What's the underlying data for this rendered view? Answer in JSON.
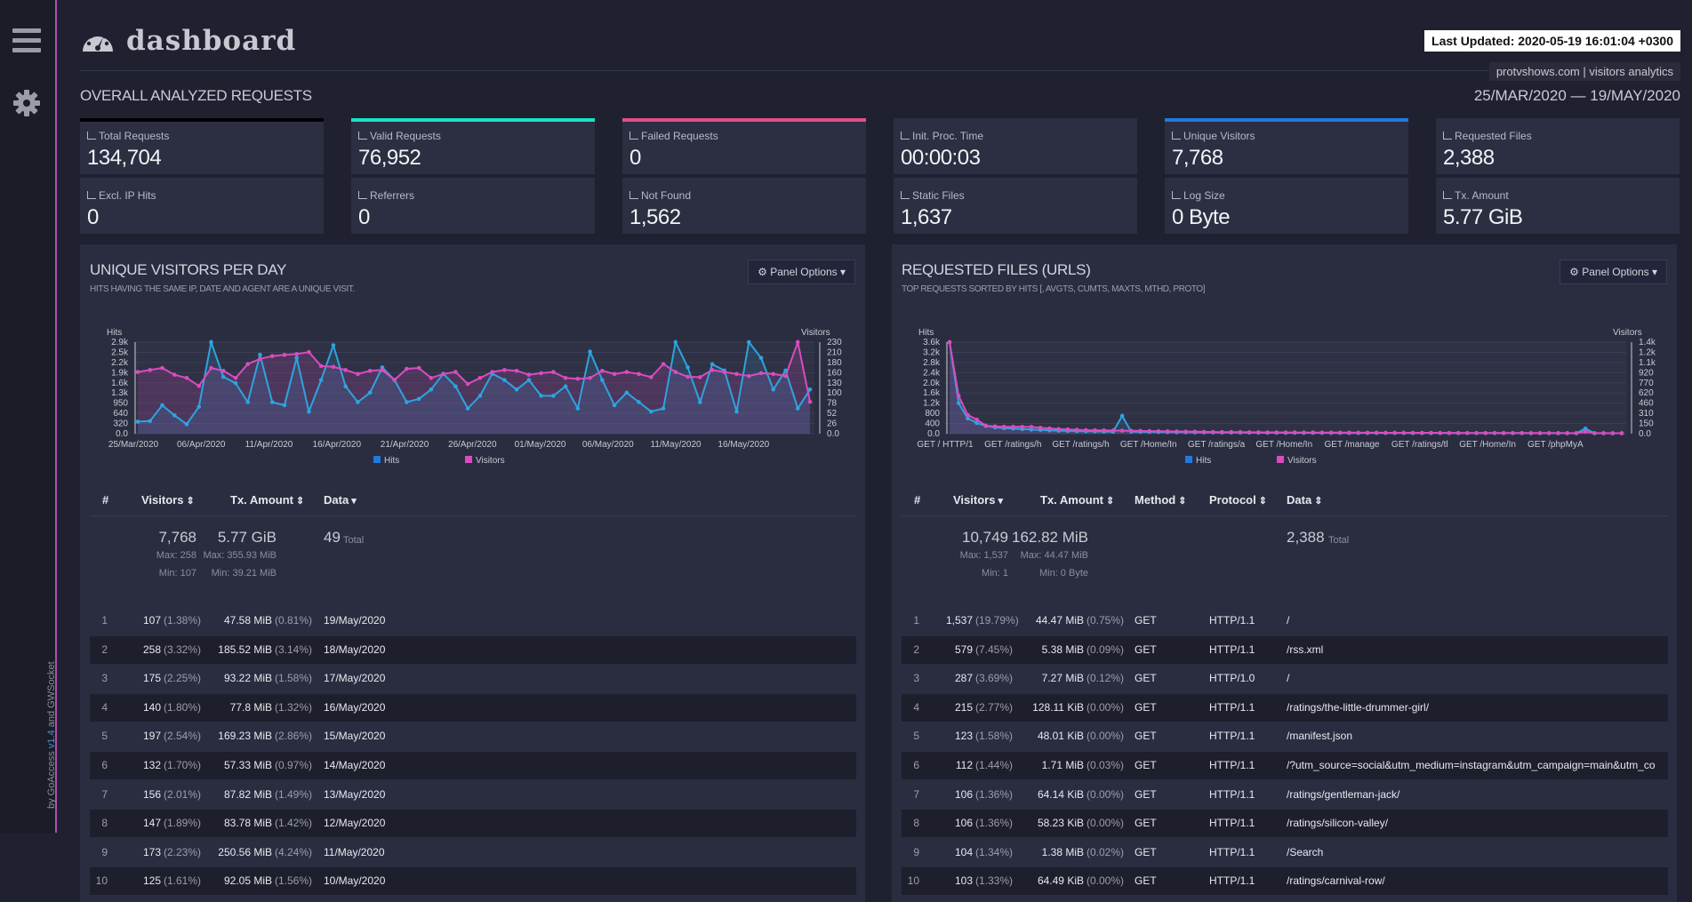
{
  "sidebar": {
    "credit_prefix": "by GoAccess",
    "credit_version": "v1.4",
    "credit_and": "and",
    "credit_suffix": "GWSocket"
  },
  "header": {
    "title": "dashboard",
    "last_updated": "Last Updated: 2020-05-19 16:01:04 +0300",
    "site": "protvshows.com | visitors analytics",
    "section": "OVERALL ANALYZED REQUESTS",
    "daterange": "25/MAR/2020 — 19/MAY/2020"
  },
  "colors": {
    "valid": "#19e3c4",
    "failed": "#e64c8a",
    "unique": "#1f7ae0",
    "hits": "#2da4e0",
    "visitors": "#d94cc0"
  },
  "cards": [
    {
      "label": "Total Requests",
      "value": "134,704"
    },
    {
      "label": "Valid Requests",
      "value": "76,952"
    },
    {
      "label": "Failed Requests",
      "value": "0"
    },
    {
      "label": "Init. Proc. Time",
      "value": "00:00:03"
    },
    {
      "label": "Unique Visitors",
      "value": "7,768"
    },
    {
      "label": "Requested Files",
      "value": "2,388"
    },
    {
      "label": "Excl. IP Hits",
      "value": "0"
    },
    {
      "label": "Referrers",
      "value": "0"
    },
    {
      "label": "Not Found",
      "value": "1,562"
    },
    {
      "label": "Static Files",
      "value": "1,637"
    },
    {
      "label": "Log Size",
      "value": "0 Byte"
    },
    {
      "label": "Tx. Amount",
      "value": "5.77 GiB"
    }
  ],
  "visitors_panel": {
    "title": "UNIQUE VISITORS PER DAY",
    "subtitle": "HITS HAVING THE SAME IP, DATE AND AGENT ARE A UNIQUE VISIT.",
    "options": "Panel Options",
    "columns": [
      "#",
      "Visitors",
      "Tx. Amount",
      "Data"
    ],
    "summary": {
      "visitors": "7,768",
      "visitors_max": "Max: 258",
      "visitors_min": "Min: 107",
      "tx": "5.77 GiB",
      "tx_max": "Max: 355.93 MiB",
      "tx_min": "Min: 39.21 MiB",
      "data": "49",
      "data_total": "Total"
    },
    "rows": [
      {
        "n": "1",
        "v": "107",
        "vp": "(1.38%)",
        "tx": "47.58 MiB",
        "txp": "(0.81%)",
        "d": "19/May/2020"
      },
      {
        "n": "2",
        "v": "258",
        "vp": "(3.32%)",
        "tx": "185.52 MiB",
        "txp": "(3.14%)",
        "d": "18/May/2020"
      },
      {
        "n": "3",
        "v": "175",
        "vp": "(2.25%)",
        "tx": "93.22 MiB",
        "txp": "(1.58%)",
        "d": "17/May/2020"
      },
      {
        "n": "4",
        "v": "140",
        "vp": "(1.80%)",
        "tx": "77.8 MiB",
        "txp": "(1.32%)",
        "d": "16/May/2020"
      },
      {
        "n": "5",
        "v": "197",
        "vp": "(2.54%)",
        "tx": "169.23 MiB",
        "txp": "(2.86%)",
        "d": "15/May/2020"
      },
      {
        "n": "6",
        "v": "132",
        "vp": "(1.70%)",
        "tx": "57.33 MiB",
        "txp": "(0.97%)",
        "d": "14/May/2020"
      },
      {
        "n": "7",
        "v": "156",
        "vp": "(2.01%)",
        "tx": "87.82 MiB",
        "txp": "(1.49%)",
        "d": "13/May/2020"
      },
      {
        "n": "8",
        "v": "147",
        "vp": "(1.89%)",
        "tx": "83.78 MiB",
        "txp": "(1.42%)",
        "d": "12/May/2020"
      },
      {
        "n": "9",
        "v": "173",
        "vp": "(2.23%)",
        "tx": "250.56 MiB",
        "txp": "(4.24%)",
        "d": "11/May/2020"
      },
      {
        "n": "10",
        "v": "125",
        "vp": "(1.61%)",
        "tx": "92.05 MiB",
        "txp": "(1.56%)",
        "d": "10/May/2020"
      }
    ]
  },
  "files_panel": {
    "title": "REQUESTED FILES (URLS)",
    "subtitle": "TOP REQUESTS SORTED BY HITS [, AVGTS, CUMTS, MAXTS, MTHD, PROTO]",
    "options": "Panel Options",
    "columns": [
      "#",
      "Visitors",
      "Tx. Amount",
      "Method",
      "Protocol",
      "Data"
    ],
    "summary": {
      "visitors": "10,749",
      "visitors_max": "Max: 1,537",
      "visitors_min": "Min: 1",
      "tx": "162.82 MiB",
      "tx_max": "Max: 44.47 MiB",
      "tx_min": "Min: 0 Byte",
      "data": "2,388",
      "data_total": "Total"
    },
    "rows": [
      {
        "n": "1",
        "v": "1,537",
        "vp": "(19.79%)",
        "tx": "44.47 MiB",
        "txp": "(0.75%)",
        "m": "GET",
        "p": "HTTP/1.1",
        "d": "/"
      },
      {
        "n": "2",
        "v": "579",
        "vp": "(7.45%)",
        "tx": "5.38 MiB",
        "txp": "(0.09%)",
        "m": "GET",
        "p": "HTTP/1.1",
        "d": "/rss.xml"
      },
      {
        "n": "3",
        "v": "287",
        "vp": "(3.69%)",
        "tx": "7.27 MiB",
        "txp": "(0.12%)",
        "m": "GET",
        "p": "HTTP/1.0",
        "d": "/"
      },
      {
        "n": "4",
        "v": "215",
        "vp": "(2.77%)",
        "tx": "128.11 KiB",
        "txp": "(0.00%)",
        "m": "GET",
        "p": "HTTP/1.1",
        "d": "/ratings/the-little-drummer-girl/"
      },
      {
        "n": "5",
        "v": "123",
        "vp": "(1.58%)",
        "tx": "48.01 KiB",
        "txp": "(0.00%)",
        "m": "GET",
        "p": "HTTP/1.1",
        "d": "/manifest.json"
      },
      {
        "n": "6",
        "v": "112",
        "vp": "(1.44%)",
        "tx": "1.71 MiB",
        "txp": "(0.03%)",
        "m": "GET",
        "p": "HTTP/1.1",
        "d": "/?utm_source=social&utm_medium=instagram&utm_campaign=main&utm_co"
      },
      {
        "n": "7",
        "v": "106",
        "vp": "(1.36%)",
        "tx": "64.14 KiB",
        "txp": "(0.00%)",
        "m": "GET",
        "p": "HTTP/1.1",
        "d": "/ratings/gentleman-jack/"
      },
      {
        "n": "8",
        "v": "106",
        "vp": "(1.36%)",
        "tx": "58.23 KiB",
        "txp": "(0.00%)",
        "m": "GET",
        "p": "HTTP/1.1",
        "d": "/ratings/silicon-valley/"
      },
      {
        "n": "9",
        "v": "104",
        "vp": "(1.34%)",
        "tx": "1.38 MiB",
        "txp": "(0.02%)",
        "m": "GET",
        "p": "HTTP/1.1",
        "d": "/Search"
      },
      {
        "n": "10",
        "v": "103",
        "vp": "(1.33%)",
        "tx": "64.49 KiB",
        "txp": "(0.00%)",
        "m": "GET",
        "p": "HTTP/1.1",
        "d": "/ratings/carnival-row/"
      }
    ]
  },
  "chart_data": [
    {
      "type": "line",
      "ylabel": "Hits",
      "y2label": "Visitors",
      "yticks": [
        "0.0",
        "320",
        "640",
        "950",
        "1.3k",
        "1.6k",
        "1.9k",
        "2.2k",
        "2.5k",
        "2.9k"
      ],
      "ylim": [
        0,
        2900
      ],
      "y2ticks": [
        "0.0",
        "26",
        "52",
        "78",
        "100",
        "130",
        "160",
        "180",
        "210",
        "230"
      ],
      "y2lim": [
        0,
        230
      ],
      "xticks": [
        "25/Mar/2020",
        "06/Apr/2020",
        "11/Apr/2020",
        "16/Apr/2020",
        "21/Apr/2020",
        "26/Apr/2020",
        "01/May/2020",
        "06/May/2020",
        "11/May/2020",
        "16/May/2020"
      ],
      "series": [
        {
          "name": "Hits",
          "values": [
            380,
            400,
            900,
            580,
            300,
            850,
            3000,
            1800,
            1600,
            1000,
            2500,
            1000,
            900,
            2400,
            700,
            1700,
            2800,
            1500,
            1000,
            1300,
            2100,
            1700,
            1000,
            1100,
            1400,
            1900,
            1500,
            800,
            1200,
            1900,
            1700,
            1400,
            1700,
            1200,
            1200,
            1500,
            800,
            2600,
            1700,
            900,
            1300,
            1000,
            700,
            800,
            3100,
            2100,
            1000,
            2200,
            2000,
            700,
            3300,
            2400,
            1400,
            2000,
            800,
            1400
          ]
        },
        {
          "name": "Visitors",
          "values": [
            155,
            160,
            165,
            148,
            140,
            120,
            165,
            158,
            140,
            175,
            188,
            195,
            198,
            200,
            205,
            170,
            168,
            160,
            150,
            158,
            160,
            135,
            163,
            165,
            140,
            150,
            155,
            125,
            140,
            155,
            160,
            158,
            148,
            152,
            155,
            140,
            138,
            140,
            158,
            150,
            155,
            150,
            142,
            175,
            155,
            143,
            142,
            160,
            155,
            150,
            145,
            152,
            150,
            145,
            245,
            80
          ]
        }
      ]
    },
    {
      "type": "line",
      "ylabel": "Hits",
      "y2label": "Visitors",
      "yticks": [
        "0.0",
        "400",
        "800",
        "1.2k",
        "1.6k",
        "2.0k",
        "2.4k",
        "2.8k",
        "3.2k",
        "3.6k"
      ],
      "ylim": [
        0,
        3600
      ],
      "y2ticks": [
        "0.0",
        "150",
        "310",
        "460",
        "620",
        "770",
        "920",
        "1.1k",
        "1.2k",
        "1.4k"
      ],
      "y2lim": [
        0,
        1400
      ],
      "xticks": [
        "GET / HTTP/1",
        "GET /ratings/h",
        "GET /ratings/h",
        "GET /Home/In",
        "GET /ratings/a",
        "GET /Home/In",
        "GET /manage",
        "GET /ratings/tl",
        "GET /Home/In",
        "GET /phpMyA"
      ],
      "series": [
        {
          "name": "Hits",
          "values": [
            3900,
            1200,
            600,
            420,
            300,
            250,
            220,
            200,
            180,
            160,
            150,
            130,
            120,
            110,
            100,
            95,
            90,
            85,
            80,
            700,
            80,
            75,
            70,
            65,
            60,
            58,
            55,
            52,
            50,
            48,
            46,
            44,
            42,
            40,
            38,
            36,
            35,
            34,
            33,
            32,
            31,
            30,
            30,
            29,
            28,
            28,
            27,
            26,
            26,
            25,
            25,
            24,
            24,
            23,
            23,
            22,
            22,
            22,
            21,
            21,
            21,
            20,
            20,
            20,
            19,
            19,
            19,
            18,
            18,
            18,
            200,
            18,
            17,
            17,
            17
          ]
        },
        {
          "name": "Visitors",
          "values": [
            1537,
            579,
            287,
            215,
            123,
            112,
            106,
            106,
            104,
            103,
            90,
            80,
            70,
            65,
            60,
            55,
            52,
            50,
            48,
            46,
            44,
            42,
            40,
            38,
            36,
            34,
            32,
            30,
            28,
            26,
            25,
            24,
            23,
            22,
            21,
            20,
            20,
            19,
            19,
            18,
            18,
            17,
            17,
            16,
            16,
            15,
            15,
            15,
            14,
            14,
            14,
            13,
            13,
            13,
            12,
            12,
            12,
            11,
            11,
            11,
            10,
            10,
            10,
            10,
            9,
            9,
            9,
            9,
            8,
            8,
            30,
            8,
            8,
            7,
            7
          ]
        }
      ]
    }
  ]
}
